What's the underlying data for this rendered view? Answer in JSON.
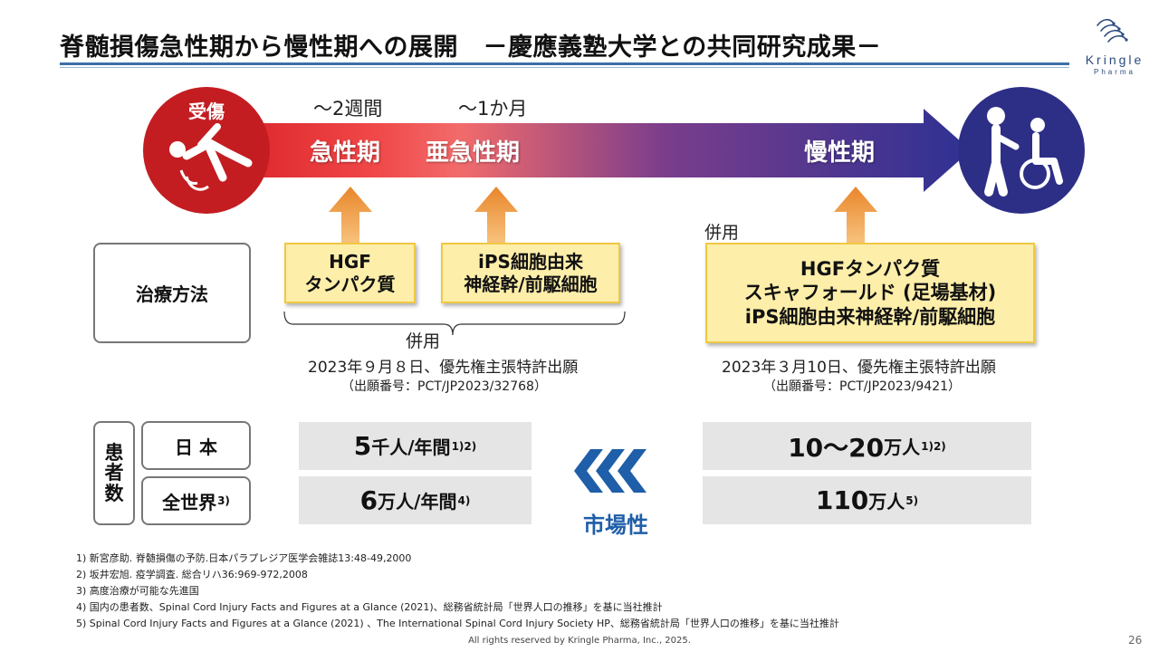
{
  "header": {
    "title": "脊髄損傷急性期から慢性期への展開　－慶應義塾大学との共同研究成果－",
    "logo_word": "Kringle",
    "logo_sub": "Pharma"
  },
  "timeline": {
    "injury_label": "受傷",
    "phases": {
      "acute": "急性期",
      "subacute": "亜急性期",
      "chronic": "慢性期"
    },
    "durations": {
      "acute": "～2週間",
      "subacute": "～1か月"
    },
    "icons": {
      "injury": "falling-person-icon",
      "chronic": "wheelchair-caregiver-icon"
    },
    "colors": {
      "injury_circle": "#c31d22",
      "chronic_circle": "#2d2f86",
      "arrow_start": "#d81e24",
      "arrow_mid": "#f26b6b",
      "arrow_end": "#2e3192",
      "up_arrow": "#ee9a3b"
    }
  },
  "treatment": {
    "label": "治療方法",
    "box_hgf": [
      "HGF",
      "タンパク質"
    ],
    "box_ips": [
      "iPS細胞由来",
      "神経幹/前駆細胞"
    ],
    "box_combined": [
      "HGFタンパク質",
      "スキャフォールド (足場基材)",
      "iPS細胞由来神経幹/前駆細胞"
    ],
    "combined_label_left": "併用",
    "combined_label_right": "併用",
    "patent_left": {
      "date": "2023年９月８日、優先権主張特許出願",
      "number": "（出願番号：PCT/JP2023/32768）"
    },
    "patent_right": {
      "date": "2023年３月10日、優先権主張特許出願",
      "number": "（出願番号：PCT/JP2023/9421）"
    }
  },
  "patients": {
    "label": "患者数",
    "label_chars": [
      "患",
      "者",
      "数"
    ],
    "rows": [
      {
        "region": "日 本",
        "region_sup": "",
        "left_num": "5",
        "left_unit": "千人/年間",
        "left_sup": "1)2)",
        "right_num": "10～20",
        "right_unit": "万人",
        "right_sup": "1)2)"
      },
      {
        "region": "全世界",
        "region_sup": "3)",
        "left_num": "6",
        "left_unit": "万人/年間",
        "left_sup": "4)",
        "right_num": "110",
        "right_unit": "万人",
        "right_sup": "5)"
      }
    ],
    "market_label": "市場性",
    "market_icon": "triple-chevron-left-icon",
    "market_color": "#1f5ea8"
  },
  "footnotes": [
    "1)  新宮彦助. 脊髄損傷の予防.日本パラプレジア医学会雑誌13:48-49,2000",
    "2)  坂井宏旭. 疫学調査. 総合リハ36:969-972,2008",
    "3)  高度治療が可能な先進国",
    "4)  国内の患者数、Spinal Cord Injury Facts and Figures at a Glance (2021)、総務省統計局「世界人口の推移」を基に当社推計",
    "5)  Spinal Cord Injury Facts and Figures at a Glance (2021) 、The International Spinal Cord Injury Society HP、総務省統計局「世界人口の推移」を基に当社推計"
  ],
  "footer": {
    "copyright": "All rights reserved by Kringle Pharma, Inc., 2025.",
    "page_number": "26"
  }
}
